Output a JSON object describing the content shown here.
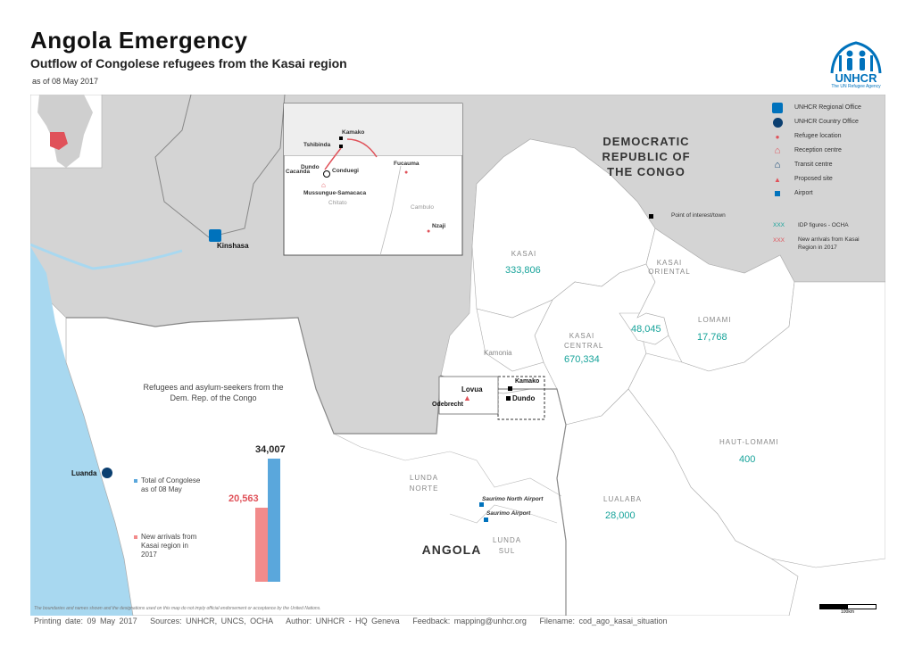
{
  "header": {
    "title": "Angola Emergency",
    "subtitle": "Outflow of Congolese refugees from the Kasai region",
    "as_of": "as of 08 May 2017",
    "logo_text": "UNHCR",
    "logo_sub": "The UN Refugee Agency"
  },
  "legend": [
    {
      "icon": "regional-office-icon",
      "label": "UNHCR Regional Office"
    },
    {
      "icon": "country-office-icon",
      "label": "UNHCR Country Office"
    },
    {
      "icon": "refugee-location-icon",
      "label": "Refugee location"
    },
    {
      "icon": "reception-centre-icon",
      "label": "Reception centre"
    },
    {
      "icon": "transit-centre-icon",
      "label": "Transit centre"
    },
    {
      "icon": "proposed-site-icon",
      "label": "Proposed site"
    },
    {
      "icon": "airport-icon",
      "label": "Airport"
    }
  ],
  "legend_extra": {
    "poi": "Point of interest/town",
    "idp_symbol": "XXX",
    "idp_label": "IDP figures - OCHA",
    "new_symbol": "XXX",
    "new_label_1": "New arrivals from Kasai",
    "new_label_2": "Region in 2017"
  },
  "map": {
    "drc_label_1": "DEMOCRATIC",
    "drc_label_2": "REPUBLIC OF",
    "drc_label_3": "THE CONGO",
    "angola_label": "ANGOLA",
    "regions": {
      "kasai": "KASAI",
      "kasai_central_1": "KASAI",
      "kasai_central_2": "CENTRAL",
      "kasai_oriental_1": "KASAI",
      "kasai_oriental_2": "ORIENTAL",
      "lomami": "LOMAMI",
      "haut_lomami": "HAUT-LOMAMI",
      "lualaba": "LUALABA",
      "lunda_norte_1": "LUNDA",
      "lunda_norte_2": "NORTE",
      "lunda_sul_1": "LUNDA",
      "lunda_sul_2": "SUL",
      "kamonia": "Kamonia"
    },
    "idp": {
      "kasai": "333,806",
      "kasai_central": "670,334",
      "kasai_oriental": "48,045",
      "lomami": "17,768",
      "haut_lomami": "400",
      "lualaba": "28,000"
    },
    "places": {
      "kinshasa": "Kinshasa",
      "luanda": "Luanda",
      "lovua": "Lovua",
      "odebrecht": "Odebrecht",
      "kamako": "Kamako",
      "dundo": "Dundo",
      "saurimo_north": "Saurimo North Airport",
      "saurimo": "Saurimo Airport"
    },
    "inset": {
      "kamako": "Kamako",
      "tshibinda": "Tshibinda",
      "cacanda": "Cacanda",
      "dundo": "Dundo",
      "conduegi": "Conduegi",
      "fucauma": "Fucauma",
      "mussungue": "Mussungue-Samacaca",
      "chitato": "Chitato",
      "cambulo": "Cambulo",
      "nzaji": "Nzaji"
    },
    "scale": "100km"
  },
  "chart_data": {
    "type": "bar",
    "title": "Refugees and asylum-seekers from the Dem. Rep. of the Congo",
    "series": [
      {
        "name": "New arrivals from Kasai region in 2017",
        "value": 20563,
        "value_label": "20,563",
        "color": "#f28b8b"
      },
      {
        "name": "Total of Congolese as of 08 May",
        "value": 34007,
        "value_label": "34,007",
        "color": "#5aa7dc"
      }
    ],
    "legend": [
      {
        "line1": "Total of Congolese",
        "line2": "as of 08 May",
        "color": "#5aa7dc"
      },
      {
        "line1": "New arrivals from",
        "line2": "Kasai region in",
        "line3": "2017",
        "color": "#f28b8b"
      }
    ]
  },
  "footer": {
    "printing": "Printing date: 09 May 2017",
    "sources": "Sources: UNHCR, UNCS, OCHA",
    "author": "Author: UNHCR - HQ Geneva",
    "feedback": "Feedback: mapping@unhcr.org",
    "filename": "Filename: cod_ago_kasai_situation",
    "disclaimer": "The boundaries and names shown and the designations used on this map do not imply official endorsement or acceptance by the United Nations."
  },
  "colors": {
    "other_land": "#d4d4d4",
    "water": "#a8d8f0",
    "border": "#9a9a9a",
    "idp_text": "#16a39a",
    "new_arrivals": "#f28b8b",
    "total": "#5aa7dc",
    "unhcr_blue": "#0072bc",
    "refugee_red": "#e0525a"
  }
}
